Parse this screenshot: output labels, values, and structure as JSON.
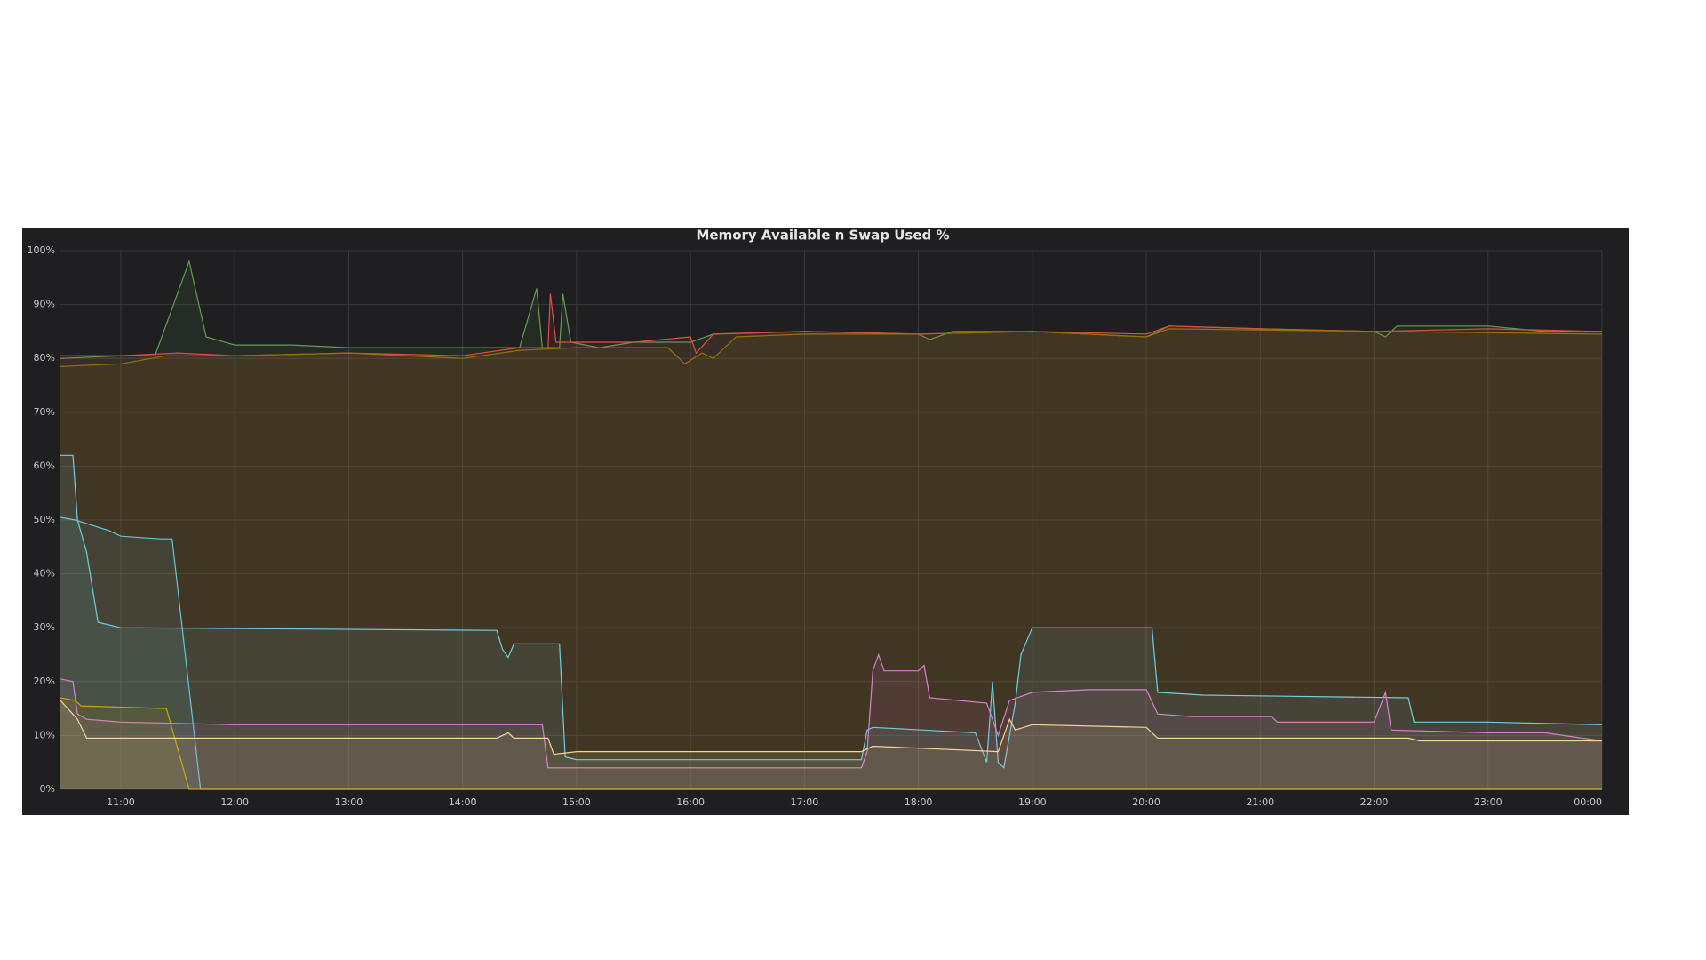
{
  "chart_data": {
    "type": "line",
    "title": "Memory Available n Swap Used %",
    "xlim": [
      10.47,
      24
    ],
    "xticks": [
      {
        "value": 11,
        "label": "11:00"
      },
      {
        "value": 12,
        "label": "12:00"
      },
      {
        "value": 13,
        "label": "13:00"
      },
      {
        "value": 14,
        "label": "14:00"
      },
      {
        "value": 15,
        "label": "15:00"
      },
      {
        "value": 16,
        "label": "16:00"
      },
      {
        "value": 17,
        "label": "17:00"
      },
      {
        "value": 18,
        "label": "18:00"
      },
      {
        "value": 19,
        "label": "19:00"
      },
      {
        "value": 20,
        "label": "20:00"
      },
      {
        "value": 21,
        "label": "21:00"
      },
      {
        "value": 22,
        "label": "22:00"
      },
      {
        "value": 23,
        "label": "23:00"
      },
      {
        "value": 24,
        "label": "00:00"
      }
    ],
    "ylim": [
      0,
      100
    ],
    "yticks": [
      {
        "value": 0,
        "label": "0%"
      },
      {
        "value": 10,
        "label": "10%"
      },
      {
        "value": 20,
        "label": "20%"
      },
      {
        "value": 30,
        "label": "30%"
      },
      {
        "value": 40,
        "label": "40%"
      },
      {
        "value": 50,
        "label": "50%"
      },
      {
        "value": 60,
        "label": "60%"
      },
      {
        "value": 70,
        "label": "70%"
      },
      {
        "value": 80,
        "label": "80%"
      },
      {
        "value": 90,
        "label": "90%"
      },
      {
        "value": 100,
        "label": "100%"
      }
    ],
    "grid": true,
    "series": [
      {
        "color": "#629e51",
        "x": [
          10.47,
          11.0,
          11.3,
          11.6,
          11.75,
          12.0,
          12.5,
          13.0,
          13.5,
          14.0,
          14.5,
          14.65,
          14.7,
          14.85,
          14.88,
          14.95,
          15.2,
          15.5,
          16.0,
          16.2,
          17.0,
          18.0,
          18.1,
          18.3,
          19.0,
          20.0,
          20.2,
          21.0,
          22.0,
          22.1,
          22.2,
          23.0,
          23.5,
          24.0
        ],
        "values": [
          80,
          80.5,
          80.5,
          98,
          84,
          82.5,
          82.5,
          82,
          82,
          82,
          82,
          93,
          82,
          82,
          92,
          83,
          82,
          83,
          83,
          84.5,
          85,
          84.5,
          83.5,
          85,
          85,
          84,
          86,
          85.5,
          85,
          84,
          86,
          86,
          85,
          85
        ]
      },
      {
        "color": "#e24d42",
        "x": [
          10.47,
          11.0,
          11.5,
          12.0,
          13.0,
          14.0,
          14.5,
          14.75,
          14.77,
          14.82,
          15.5,
          16.0,
          16.05,
          16.2,
          17.0,
          18.0,
          19.0,
          20.0,
          20.2,
          21.0,
          22.0,
          23.0,
          24.0
        ],
        "values": [
          80.5,
          80.5,
          81,
          80.5,
          81,
          80.5,
          82,
          82,
          92,
          83,
          83,
          84,
          81,
          84.5,
          85,
          84.5,
          85,
          84.5,
          86,
          85.5,
          85,
          85.5,
          85
        ]
      },
      {
        "color": "#967302",
        "x": [
          10.47,
          11.0,
          11.4,
          12.0,
          13.0,
          14.0,
          14.5,
          15.0,
          15.8,
          15.95,
          16.1,
          16.2,
          16.4,
          17.0,
          18.0,
          19.0,
          20.0,
          20.2,
          24.0
        ],
        "values": [
          78.5,
          79,
          80.5,
          80.5,
          81,
          80,
          81.5,
          82,
          82,
          79,
          81,
          80,
          84,
          84.5,
          84.5,
          85,
          84,
          85.5,
          84.5
        ]
      },
      {
        "color": "#6ed0e0",
        "x": [
          10.47,
          10.58,
          10.62,
          10.7,
          10.8,
          11.0,
          14.3,
          14.35,
          14.4,
          14.45,
          14.85,
          14.9,
          15.0,
          17.5,
          17.55,
          17.6,
          18.5,
          18.6,
          18.65,
          18.7,
          18.75,
          18.8,
          18.85,
          18.9,
          19.0,
          20.05,
          20.1,
          20.5,
          22.3,
          22.35,
          23.0,
          24.0
        ],
        "values": [
          62,
          62,
          50,
          44,
          31,
          30,
          29.5,
          26,
          24.5,
          27,
          27,
          6,
          5.5,
          5.5,
          11,
          11.5,
          10.5,
          5,
          20,
          5,
          4,
          10,
          16,
          25,
          30,
          30,
          18,
          17.5,
          17,
          12.5,
          12.5,
          12
        ]
      },
      {
        "color": "#65c5db",
        "x": [
          10.47,
          10.6,
          10.9,
          11.0,
          11.35,
          11.45,
          11.7,
          24.0
        ],
        "values": [
          50.5,
          50,
          48,
          47,
          46.5,
          46.5,
          0,
          0
        ]
      },
      {
        "color": "#d683ce",
        "x": [
          10.47,
          10.58,
          10.62,
          10.7,
          11.0,
          12.0,
          14.7,
          14.75,
          17.5,
          17.55,
          17.6,
          17.65,
          17.7,
          18.0,
          18.05,
          18.1,
          18.6,
          18.7,
          18.8,
          19.0,
          19.5,
          20.0,
          20.1,
          20.4,
          21.1,
          21.15,
          22.0,
          22.1,
          22.15,
          23.0,
          23.5,
          24.0
        ],
        "values": [
          20.5,
          20,
          14,
          13,
          12.5,
          12,
          12,
          4,
          4,
          7,
          22,
          25,
          22,
          22,
          23,
          17,
          16,
          10,
          16.5,
          18,
          18.5,
          18.5,
          14,
          13.5,
          13.5,
          12.5,
          12.5,
          18,
          11,
          10.5,
          10.5,
          9
        ]
      },
      {
        "color": "#cca300",
        "x": [
          10.47,
          10.6,
          10.65,
          11.4,
          11.6,
          24.0
        ],
        "values": [
          17,
          16.5,
          15.5,
          15,
          0,
          0
        ]
      },
      {
        "color": "#f4d598",
        "x": [
          10.47,
          10.62,
          10.7,
          11.0,
          14.3,
          14.4,
          14.45,
          14.75,
          14.8,
          15.0,
          17.5,
          17.6,
          18.7,
          18.8,
          18.85,
          19.0,
          20.0,
          20.1,
          22.3,
          22.4,
          24.0
        ],
        "values": [
          16.5,
          13,
          9.5,
          9.5,
          9.5,
          10.5,
          9.5,
          9.5,
          6.5,
          7,
          7,
          8,
          7,
          13,
          11,
          12,
          11.5,
          9.5,
          9.5,
          9,
          9
        ]
      }
    ]
  }
}
